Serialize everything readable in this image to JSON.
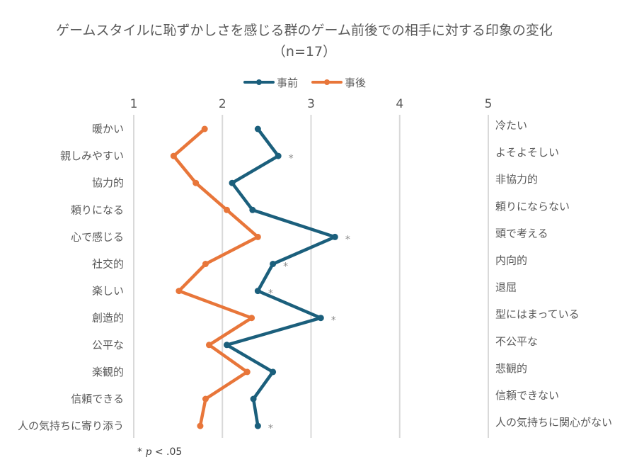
{
  "title": {
    "line1": "ゲームスタイルに恥ずかしさを感じる群のゲーム前後での相手に対する印象の変化",
    "line2": "（n=17）"
  },
  "legend": [
    {
      "label": "事前",
      "color": "#1b5f7c"
    },
    {
      "label": "事後",
      "color": "#e8763a"
    }
  ],
  "note": {
    "star": "*",
    "p": "p",
    "rest": " < .05"
  },
  "chart_data": {
    "type": "line",
    "orientation": "horizontal-profile",
    "title": "ゲームスタイルに恥ずかしさを感じる群のゲーム前後での相手に対する印象の変化（n=17）",
    "xlim": [
      1,
      5
    ],
    "x_ticks": [
      1,
      2,
      3,
      4,
      5
    ],
    "grid": true,
    "legend_position": "top",
    "categories_left": [
      "暖かい",
      "親しみやすい",
      "協力的",
      "頼りになる",
      "心で感じる",
      "社交的",
      "楽しい",
      "創造的",
      "公平な",
      "楽観的",
      "信頼できる",
      "人の気持ちに寄り添う"
    ],
    "categories_right": [
      "冷たい",
      "よそよそしい",
      "非協力的",
      "頼りにならない",
      "頭で考える",
      "内向的",
      "退屈",
      "型にはまっている",
      "不公平な",
      "悲観的",
      "信頼できない",
      "人の気持ちに関心がない"
    ],
    "series": [
      {
        "name": "事前",
        "color": "#1b5f7c",
        "values": [
          2.4,
          2.63,
          2.11,
          2.34,
          3.27,
          2.57,
          2.4,
          3.11,
          2.05,
          2.57,
          2.35,
          2.4
        ]
      },
      {
        "name": "事後",
        "color": "#e8763a",
        "values": [
          1.8,
          1.45,
          1.7,
          2.05,
          2.4,
          1.81,
          1.51,
          2.33,
          1.85,
          2.28,
          1.81,
          1.75
        ]
      }
    ],
    "significant": [
      false,
      true,
      false,
      false,
      true,
      true,
      true,
      true,
      false,
      false,
      false,
      true
    ],
    "significance_marker": "*",
    "annotation": "* p < .05"
  }
}
